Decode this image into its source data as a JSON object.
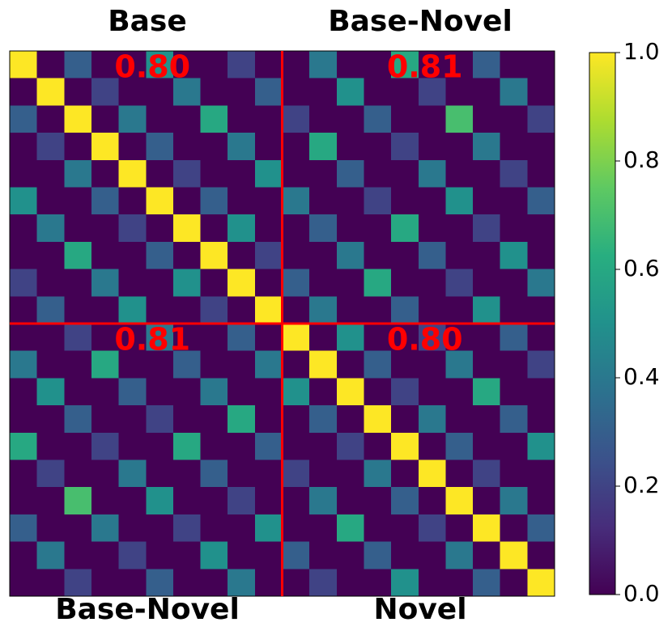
{
  "chart_data": {
    "type": "heatmap",
    "colormap": "viridis",
    "top_labels": [
      "Base",
      "Base-Novel"
    ],
    "bottom_labels": [
      "Base-Novel",
      "Novel"
    ],
    "annotations": [
      "0.80",
      "0.81",
      "0.81",
      "0.80"
    ],
    "divider_color": "#ff0000",
    "clim": [
      0,
      1
    ],
    "cticks": [
      {
        "value": 0,
        "label": "0.0"
      },
      {
        "value": 0.2,
        "label": "0.2"
      },
      {
        "value": 0.4,
        "label": "0.4"
      },
      {
        "value": 0.6,
        "label": "0.6"
      },
      {
        "value": 0.8,
        "label": "0.8"
      },
      {
        "value": 1,
        "label": "1.0"
      }
    ],
    "values": [
      [
        1,
        0,
        0.3,
        0,
        0,
        0.5,
        0,
        0,
        0.2,
        0,
        0,
        0.4,
        0,
        0,
        0.6,
        0,
        0,
        0.3,
        0,
        0
      ],
      [
        0,
        1,
        0,
        0.2,
        0,
        0,
        0.4,
        0,
        0,
        0.3,
        0,
        0,
        0.5,
        0,
        0,
        0.2,
        0,
        0,
        0.4,
        0
      ],
      [
        0.3,
        0,
        1,
        0,
        0.4,
        0,
        0,
        0.6,
        0,
        0,
        0.2,
        0,
        0,
        0.3,
        0,
        0,
        0.7,
        0,
        0,
        0.2
      ],
      [
        0,
        0.2,
        0,
        1,
        0,
        0.3,
        0,
        0,
        0.4,
        0,
        0,
        0.6,
        0,
        0,
        0.2,
        0,
        0,
        0.4,
        0,
        0
      ],
      [
        0,
        0,
        0.4,
        0,
        1,
        0,
        0.2,
        0,
        0,
        0.5,
        0,
        0,
        0.3,
        0,
        0,
        0.4,
        0,
        0,
        0.2,
        0
      ],
      [
        0.5,
        0,
        0,
        0.3,
        0,
        1,
        0,
        0.3,
        0,
        0,
        0.4,
        0,
        0,
        0.2,
        0,
        0,
        0.5,
        0,
        0,
        0.3
      ],
      [
        0,
        0.4,
        0,
        0,
        0.2,
        0,
        1,
        0,
        0.5,
        0,
        0,
        0.3,
        0,
        0,
        0.6,
        0,
        0,
        0.2,
        0,
        0
      ],
      [
        0,
        0,
        0.6,
        0,
        0,
        0.3,
        0,
        1,
        0,
        0.2,
        0,
        0,
        0.4,
        0,
        0,
        0.3,
        0,
        0,
        0.5,
        0
      ],
      [
        0.2,
        0,
        0,
        0.4,
        0,
        0,
        0.5,
        0,
        1,
        0,
        0.3,
        0,
        0,
        0.6,
        0,
        0,
        0.2,
        0,
        0,
        0.4
      ],
      [
        0,
        0.3,
        0,
        0,
        0.5,
        0,
        0,
        0.2,
        0,
        1,
        0,
        0.4,
        0,
        0,
        0.3,
        0,
        0,
        0.5,
        0,
        0
      ],
      [
        0,
        0,
        0.2,
        0,
        0,
        0.4,
        0,
        0,
        0.3,
        0,
        1,
        0,
        0.5,
        0,
        0,
        0.2,
        0,
        0,
        0.3,
        0
      ],
      [
        0.4,
        0,
        0,
        0.6,
        0,
        0,
        0.3,
        0,
        0,
        0.4,
        0,
        1,
        0,
        0.3,
        0,
        0,
        0.4,
        0,
        0,
        0.2
      ],
      [
        0,
        0.5,
        0,
        0,
        0.3,
        0,
        0,
        0.4,
        0,
        0,
        0.5,
        0,
        1,
        0,
        0.2,
        0,
        0,
        0.6,
        0,
        0
      ],
      [
        0,
        0,
        0.3,
        0,
        0,
        0.2,
        0,
        0,
        0.6,
        0,
        0,
        0.3,
        0,
        1,
        0,
        0.4,
        0,
        0,
        0.3,
        0
      ],
      [
        0.6,
        0,
        0,
        0.2,
        0,
        0,
        0.6,
        0,
        0,
        0.3,
        0,
        0,
        0.2,
        0,
        1,
        0,
        0.3,
        0,
        0,
        0.5
      ],
      [
        0,
        0.2,
        0,
        0,
        0.4,
        0,
        0,
        0.3,
        0,
        0,
        0.2,
        0,
        0,
        0.4,
        0,
        1,
        0,
        0.2,
        0,
        0
      ],
      [
        0,
        0,
        0.7,
        0,
        0,
        0.5,
        0,
        0,
        0.2,
        0,
        0,
        0.4,
        0,
        0,
        0.3,
        0,
        1,
        0,
        0.4,
        0
      ],
      [
        0.3,
        0,
        0,
        0.4,
        0,
        0,
        0.2,
        0,
        0,
        0.5,
        0,
        0,
        0.6,
        0,
        0,
        0.2,
        0,
        1,
        0,
        0.3
      ],
      [
        0,
        0.4,
        0,
        0,
        0.2,
        0,
        0,
        0.5,
        0,
        0,
        0.3,
        0,
        0,
        0.3,
        0,
        0,
        0.4,
        0,
        1,
        0
      ],
      [
        0,
        0,
        0.2,
        0,
        0,
        0.3,
        0,
        0,
        0.4,
        0,
        0,
        0.2,
        0,
        0,
        0.5,
        0,
        0,
        0.3,
        0,
        1
      ]
    ]
  }
}
